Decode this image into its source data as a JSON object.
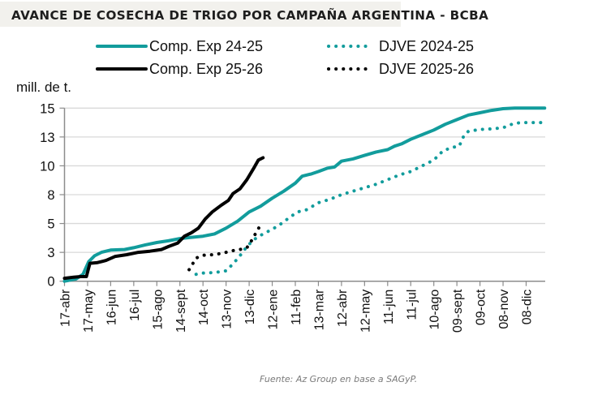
{
  "header": {
    "title": "AVANCE DE COSECHA DE TRIGO POR CAMPAÑA ARGENTINA - BCBA"
  },
  "footer": {
    "source": "Fuente: Az Group en base a SAGyP."
  },
  "colors": {
    "teal": "#129c9c",
    "black": "#000000",
    "grid": "#d9d9d9",
    "axis": "#8c8c8c",
    "title_bg": "#f2f1ed"
  },
  "chart_data": {
    "type": "line",
    "title": "AVANCE DE COSECHA DE TRIGO POR CAMPAÑA ARGENTINA - BCBA",
    "ylabel": "mill. de t.",
    "xlabel": "",
    "ylim": [
      0,
      15
    ],
    "y_ticks": [
      0,
      2.5,
      5,
      7.5,
      10,
      12.5,
      15
    ],
    "y_tick_labels": [
      "0",
      "3",
      "5",
      "8",
      "10",
      "13",
      "15"
    ],
    "x_tick_labels": [
      "17-abr",
      "17-may",
      "16-jun",
      "16-jul",
      "15-ago",
      "14-sept",
      "14-oct",
      "13-nov",
      "13-dic",
      "12-ene",
      "11-feb",
      "13-mar",
      "12-abr",
      "12-may",
      "11-jun",
      "11-jul",
      "10-ago",
      "09-sept",
      "09-oct",
      "08-nov",
      "08-dic"
    ],
    "x_unit": "tick index (0 = 17-abr, ~30 days per tick)",
    "xlim": [
      0,
      20.8
    ],
    "grid": true,
    "legend_position": "top",
    "series": [
      {
        "name": "Comp. Exp 24-25",
        "style": "solid",
        "color": "#129c9c",
        "points": [
          [
            0,
            0
          ],
          [
            0.5,
            0.2
          ],
          [
            0.8,
            0.6
          ],
          [
            1.05,
            1.7
          ],
          [
            1.3,
            2.2
          ],
          [
            1.6,
            2.5
          ],
          [
            2.0,
            2.7
          ],
          [
            2.6,
            2.75
          ],
          [
            3.0,
            2.9
          ],
          [
            3.5,
            3.15
          ],
          [
            4.0,
            3.35
          ],
          [
            4.5,
            3.5
          ],
          [
            5.0,
            3.7
          ],
          [
            5.5,
            3.8
          ],
          [
            6.0,
            3.9
          ],
          [
            6.5,
            4.1
          ],
          [
            7.0,
            4.6
          ],
          [
            7.5,
            5.2
          ],
          [
            8.0,
            6.0
          ],
          [
            8.5,
            6.5
          ],
          [
            9.0,
            7.2
          ],
          [
            9.5,
            7.8
          ],
          [
            10.0,
            8.5
          ],
          [
            10.3,
            9.1
          ],
          [
            10.7,
            9.3
          ],
          [
            11.0,
            9.5
          ],
          [
            11.4,
            9.8
          ],
          [
            11.7,
            9.9
          ],
          [
            12.0,
            10.4
          ],
          [
            12.5,
            10.6
          ],
          [
            13.0,
            10.9
          ],
          [
            13.5,
            11.2
          ],
          [
            14.0,
            11.4
          ],
          [
            14.3,
            11.7
          ],
          [
            14.6,
            11.9
          ],
          [
            15.0,
            12.3
          ],
          [
            15.5,
            12.7
          ],
          [
            16.0,
            13.1
          ],
          [
            16.5,
            13.6
          ],
          [
            17.0,
            14.0
          ],
          [
            17.5,
            14.4
          ],
          [
            18.0,
            14.6
          ],
          [
            18.5,
            14.8
          ],
          [
            19.0,
            14.95
          ],
          [
            19.5,
            15.0
          ],
          [
            20.0,
            15.0
          ],
          [
            20.8,
            15.0
          ]
        ]
      },
      {
        "name": "DJVE 2024-25",
        "style": "dotted",
        "color": "#129c9c",
        "points": [
          [
            5.7,
            0.6
          ],
          [
            6.0,
            0.7
          ],
          [
            6.5,
            0.75
          ],
          [
            7.0,
            0.9
          ],
          [
            7.3,
            1.5
          ],
          [
            7.6,
            2.2
          ],
          [
            7.9,
            3.0
          ],
          [
            8.2,
            3.6
          ],
          [
            8.6,
            4.1
          ],
          [
            9.0,
            4.5
          ],
          [
            9.4,
            5.0
          ],
          [
            9.8,
            5.6
          ],
          [
            10.1,
            6.0
          ],
          [
            10.5,
            6.2
          ],
          [
            11.0,
            6.8
          ],
          [
            11.5,
            7.1
          ],
          [
            12.0,
            7.5
          ],
          [
            12.5,
            7.8
          ],
          [
            13.0,
            8.1
          ],
          [
            13.5,
            8.4
          ],
          [
            14.0,
            8.8
          ],
          [
            14.5,
            9.2
          ],
          [
            15.0,
            9.5
          ],
          [
            15.5,
            10.0
          ],
          [
            16.0,
            10.5
          ],
          [
            16.4,
            11.3
          ],
          [
            16.8,
            11.6
          ],
          [
            17.1,
            11.7
          ],
          [
            17.3,
            12.6
          ],
          [
            17.5,
            13.0
          ],
          [
            18.0,
            13.15
          ],
          [
            18.5,
            13.2
          ],
          [
            19.0,
            13.3
          ],
          [
            19.5,
            13.7
          ],
          [
            20.0,
            13.75
          ],
          [
            20.8,
            13.75
          ]
        ]
      },
      {
        "name": "Comp. Exp 25-26",
        "style": "solid",
        "color": "#000000",
        "points": [
          [
            0,
            0.25
          ],
          [
            0.4,
            0.35
          ],
          [
            0.7,
            0.4
          ],
          [
            0.95,
            0.4
          ],
          [
            1.1,
            1.55
          ],
          [
            1.4,
            1.6
          ],
          [
            1.8,
            1.8
          ],
          [
            2.2,
            2.15
          ],
          [
            2.7,
            2.3
          ],
          [
            3.2,
            2.5
          ],
          [
            3.7,
            2.6
          ],
          [
            4.2,
            2.75
          ],
          [
            4.5,
            3.0
          ],
          [
            4.9,
            3.3
          ],
          [
            5.2,
            3.9
          ],
          [
            5.5,
            4.2
          ],
          [
            5.8,
            4.6
          ],
          [
            6.1,
            5.4
          ],
          [
            6.4,
            6.0
          ],
          [
            6.8,
            6.6
          ],
          [
            7.1,
            7.0
          ],
          [
            7.3,
            7.6
          ],
          [
            7.6,
            8.0
          ],
          [
            7.9,
            8.8
          ],
          [
            8.2,
            9.8
          ],
          [
            8.4,
            10.5
          ],
          [
            8.6,
            10.7
          ]
        ]
      },
      {
        "name": "DJVE 2025-26",
        "style": "dotted",
        "color": "#000000",
        "points": [
          [
            5.4,
            1.0
          ],
          [
            5.55,
            1.5
          ],
          [
            5.7,
            2.0
          ],
          [
            6.0,
            2.25
          ],
          [
            6.5,
            2.3
          ],
          [
            7.0,
            2.5
          ],
          [
            7.3,
            2.65
          ],
          [
            7.6,
            2.75
          ],
          [
            7.9,
            2.9
          ],
          [
            8.1,
            3.5
          ],
          [
            8.3,
            4.2
          ],
          [
            8.5,
            4.9
          ]
        ]
      }
    ]
  }
}
